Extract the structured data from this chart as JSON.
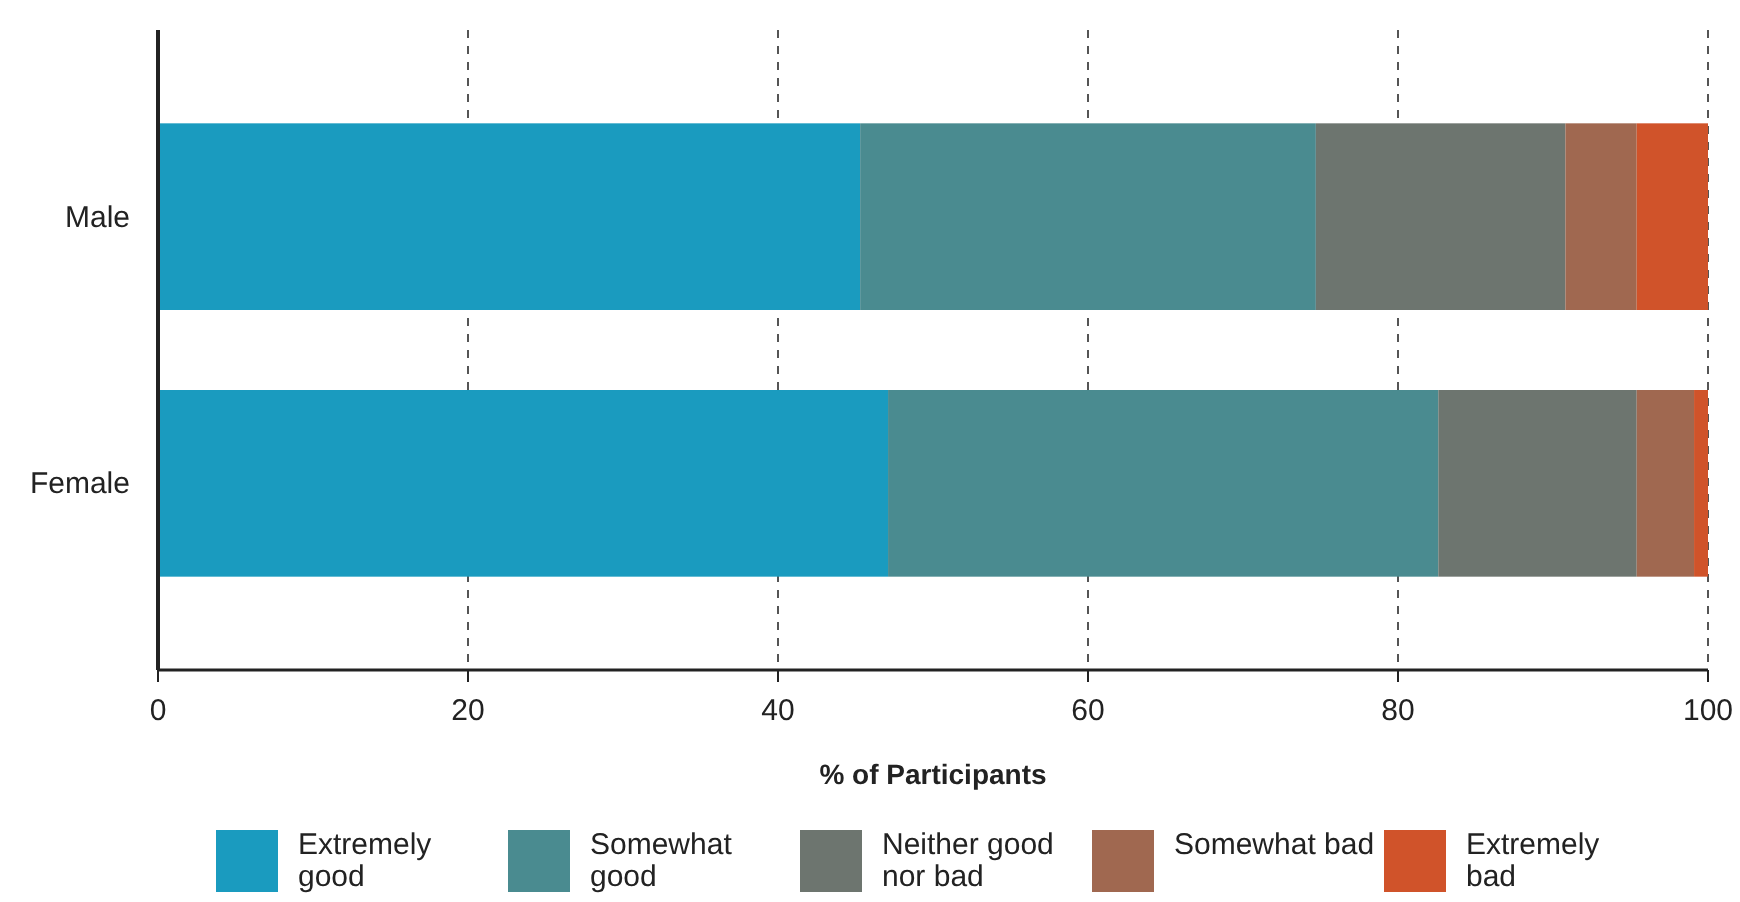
{
  "chart_data": {
    "type": "bar",
    "orientation": "horizontal",
    "stacked": true,
    "xlabel": "% of Participants",
    "categories": [
      "Male",
      "Female"
    ],
    "series": [
      {
        "name": "Extremely good",
        "color": "#1a9bbf",
        "values": [
          45.3,
          47.1
        ]
      },
      {
        "name": "Somewhat good",
        "color": "#4a8b90",
        "values": [
          29.4,
          35.5
        ]
      },
      {
        "name": "Neither good nor bad",
        "color": "#6d756f",
        "values": [
          16.1,
          12.8
        ]
      },
      {
        "name": "Somewhat bad",
        "color": "#a06850",
        "values": [
          4.6,
          3.7
        ]
      },
      {
        "name": "Extremely bad",
        "color": "#d0532a",
        "values": [
          4.6,
          0.9
        ]
      }
    ],
    "xlim": [
      0,
      100
    ],
    "xticks": [
      0,
      20,
      40,
      60,
      80,
      100
    ],
    "grid": "x",
    "legend": "bottom"
  }
}
